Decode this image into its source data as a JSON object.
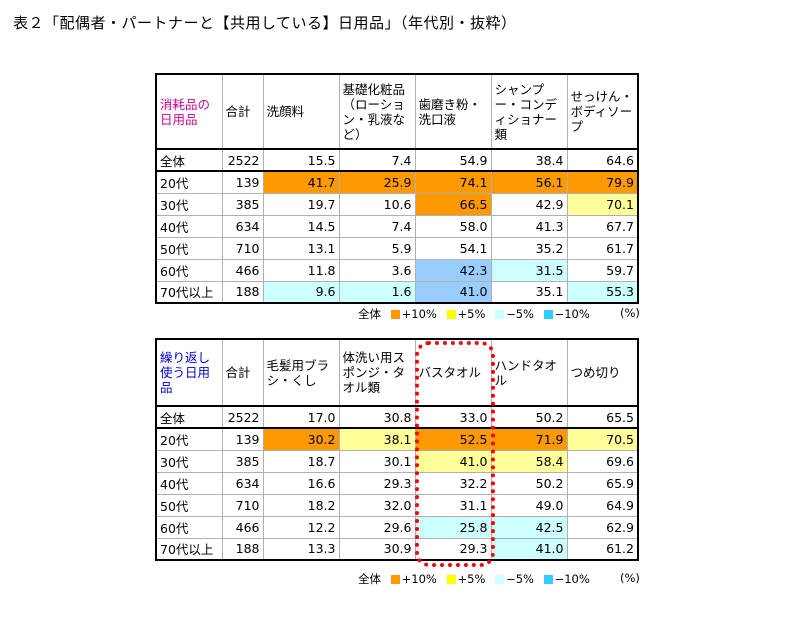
{
  "title": "表２「配偶者・パートナーと【共用している】日用品」（年代別・抜粋）",
  "colors": {
    "plus10": "#ff9900",
    "plus5": "#ffff99",
    "minus5": "#ccffff",
    "minus10": "#99ccff",
    "corner1_text": "#cc0099",
    "corner2_text": "#0000cc"
  },
  "legend": {
    "label": "全体",
    "plus10": "+10%",
    "plus5": "+5%",
    "minus5": "−5%",
    "minus10": "−10%",
    "unit": "(%)"
  },
  "table1": {
    "corner": "消耗品の\n日用品",
    "total_header": "合計",
    "columns": [
      "洗顔料",
      "基礎化粧品（ローション・乳液など）",
      "歯磨き粉・洗口液",
      "シャンプー・コンディショナー類",
      "せっけん・ボディソープ"
    ],
    "rows": [
      {
        "label": "全体",
        "n": "2522",
        "values": [
          "15.5",
          "7.4",
          "54.9",
          "38.4",
          "64.6"
        ],
        "hl": [
          "",
          "",
          "",
          "",
          ""
        ]
      },
      {
        "label": "20代",
        "n": "139",
        "values": [
          "41.7",
          "25.9",
          "74.1",
          "56.1",
          "79.9"
        ],
        "hl": [
          "p10",
          "p10",
          "p10",
          "p10",
          "p10"
        ]
      },
      {
        "label": "30代",
        "n": "385",
        "values": [
          "19.7",
          "10.6",
          "66.5",
          "42.9",
          "70.1"
        ],
        "hl": [
          "",
          "",
          "p10",
          "",
          "p5"
        ]
      },
      {
        "label": "40代",
        "n": "634",
        "values": [
          "14.5",
          "7.4",
          "58.0",
          "41.3",
          "67.7"
        ],
        "hl": [
          "",
          "",
          "",
          "",
          ""
        ]
      },
      {
        "label": "50代",
        "n": "710",
        "values": [
          "13.1",
          "5.9",
          "54.1",
          "35.2",
          "61.7"
        ],
        "hl": [
          "",
          "",
          "",
          "",
          ""
        ]
      },
      {
        "label": "60代",
        "n": "466",
        "values": [
          "11.8",
          "3.6",
          "42.3",
          "31.5",
          "59.7"
        ],
        "hl": [
          "",
          "",
          "m10",
          "m5",
          ""
        ]
      },
      {
        "label": "70代以上",
        "n": "188",
        "values": [
          "9.6",
          "1.6",
          "41.0",
          "35.1",
          "55.3"
        ],
        "hl": [
          "m5",
          "m5",
          "m10",
          "",
          "m5"
        ]
      }
    ]
  },
  "table2": {
    "corner": "繰り返し\n使う日用品",
    "total_header": "合計",
    "columns": [
      "毛髪用ブラシ・くし",
      "体洗い用スポンジ・タオル類",
      "バスタオル",
      "ハンドタオル",
      "つめ切り"
    ],
    "rows": [
      {
        "label": "全体",
        "n": "2522",
        "values": [
          "17.0",
          "30.8",
          "33.0",
          "50.2",
          "65.5"
        ],
        "hl": [
          "",
          "",
          "",
          "",
          ""
        ]
      },
      {
        "label": "20代",
        "n": "139",
        "values": [
          "30.2",
          "38.1",
          "52.5",
          "71.9",
          "70.5"
        ],
        "hl": [
          "p10",
          "p5",
          "p10",
          "p10",
          "p5"
        ]
      },
      {
        "label": "30代",
        "n": "385",
        "values": [
          "18.7",
          "30.1",
          "41.0",
          "58.4",
          "69.6"
        ],
        "hl": [
          "",
          "",
          "p5",
          "p5",
          ""
        ]
      },
      {
        "label": "40代",
        "n": "634",
        "values": [
          "16.6",
          "29.3",
          "32.2",
          "50.2",
          "65.9"
        ],
        "hl": [
          "",
          "",
          "",
          "",
          ""
        ]
      },
      {
        "label": "50代",
        "n": "710",
        "values": [
          "18.2",
          "32.0",
          "31.1",
          "49.0",
          "64.9"
        ],
        "hl": [
          "",
          "",
          "",
          "",
          ""
        ]
      },
      {
        "label": "60代",
        "n": "466",
        "values": [
          "12.2",
          "29.6",
          "25.8",
          "42.5",
          "62.9"
        ],
        "hl": [
          "",
          "",
          "m5",
          "m5",
          ""
        ]
      },
      {
        "label": "70代以上",
        "n": "188",
        "values": [
          "13.3",
          "30.9",
          "29.3",
          "41.0",
          "61.2"
        ],
        "hl": [
          "",
          "",
          "",
          "m5",
          ""
        ]
      }
    ]
  }
}
